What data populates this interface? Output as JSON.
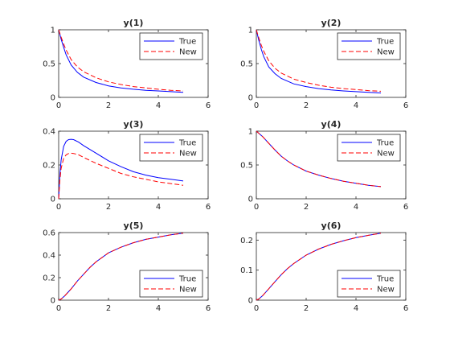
{
  "chart_data": [
    {
      "type": "line",
      "title": "y(1)",
      "xlim": [
        0,
        6
      ],
      "ylim": [
        0,
        1
      ],
      "xticks": [
        "0",
        "2",
        "4",
        "6"
      ],
      "yticks": [
        "0",
        "0.5",
        "1"
      ],
      "legend": "top-right",
      "series": [
        {
          "name": "True",
          "color": "#0000ff",
          "dash": "solid",
          "x": [
            0,
            0.1,
            0.2,
            0.3,
            0.5,
            0.75,
            1,
            1.5,
            2,
            2.5,
            3,
            3.5,
            4,
            4.5,
            5
          ],
          "y": [
            1,
            0.86,
            0.74,
            0.63,
            0.48,
            0.37,
            0.3,
            0.22,
            0.17,
            0.14,
            0.12,
            0.105,
            0.095,
            0.085,
            0.075
          ]
        },
        {
          "name": "New",
          "color": "#ff0000",
          "dash": "dashed",
          "x": [
            0,
            0.1,
            0.2,
            0.3,
            0.5,
            0.75,
            1,
            1.5,
            2,
            2.5,
            3,
            3.5,
            4,
            4.5,
            5
          ],
          "y": [
            1,
            0.89,
            0.79,
            0.7,
            0.56,
            0.45,
            0.38,
            0.29,
            0.23,
            0.19,
            0.16,
            0.14,
            0.12,
            0.105,
            0.095
          ]
        }
      ]
    },
    {
      "type": "line",
      "title": "y(2)",
      "xlim": [
        0,
        6
      ],
      "ylim": [
        0,
        1
      ],
      "xticks": [
        "0",
        "2",
        "4",
        "6"
      ],
      "yticks": [
        "0",
        "0.5",
        "1"
      ],
      "legend": "top-right",
      "series": [
        {
          "name": "True",
          "color": "#0000ff",
          "dash": "solid",
          "x": [
            0,
            0.1,
            0.2,
            0.3,
            0.5,
            0.75,
            1,
            1.5,
            2,
            2.5,
            3,
            3.5,
            4,
            4.5,
            5
          ],
          "y": [
            1,
            0.84,
            0.71,
            0.6,
            0.45,
            0.35,
            0.28,
            0.2,
            0.16,
            0.13,
            0.11,
            0.095,
            0.085,
            0.075,
            0.065
          ]
        },
        {
          "name": "New",
          "color": "#ff0000",
          "dash": "dashed",
          "x": [
            0,
            0.1,
            0.2,
            0.3,
            0.5,
            0.75,
            1,
            1.5,
            2,
            2.5,
            3,
            3.5,
            4,
            4.5,
            5
          ],
          "y": [
            1,
            0.88,
            0.77,
            0.68,
            0.54,
            0.43,
            0.36,
            0.27,
            0.22,
            0.18,
            0.15,
            0.13,
            0.115,
            0.1,
            0.09
          ]
        }
      ]
    },
    {
      "type": "line",
      "title": "y(3)",
      "xlim": [
        0,
        6
      ],
      "ylim": [
        0,
        0.4
      ],
      "xticks": [
        "0",
        "2",
        "4",
        "6"
      ],
      "yticks": [
        "0",
        "0.2",
        "0.4"
      ],
      "legend": "top-right",
      "series": [
        {
          "name": "True",
          "color": "#0000ff",
          "dash": "solid",
          "x": [
            0,
            0.05,
            0.1,
            0.2,
            0.3,
            0.4,
            0.5,
            0.6,
            0.8,
            1,
            1.5,
            2,
            2.5,
            3,
            3.5,
            4,
            4.5,
            5
          ],
          "y": [
            0,
            0.14,
            0.23,
            0.31,
            0.34,
            0.35,
            0.352,
            0.35,
            0.335,
            0.315,
            0.27,
            0.225,
            0.19,
            0.16,
            0.14,
            0.125,
            0.115,
            0.105
          ]
        },
        {
          "name": "New",
          "color": "#ff0000",
          "dash": "dashed",
          "x": [
            0,
            0.05,
            0.1,
            0.2,
            0.3,
            0.4,
            0.5,
            0.6,
            0.8,
            1,
            1.5,
            2,
            2.5,
            3,
            3.5,
            4,
            4.5,
            5
          ],
          "y": [
            0,
            0.11,
            0.18,
            0.24,
            0.26,
            0.268,
            0.27,
            0.268,
            0.26,
            0.245,
            0.21,
            0.18,
            0.15,
            0.13,
            0.115,
            0.1,
            0.09,
            0.08
          ]
        }
      ]
    },
    {
      "type": "line",
      "title": "y(4)",
      "xlim": [
        0,
        6
      ],
      "ylim": [
        0,
        1
      ],
      "xticks": [
        "0",
        "2",
        "4",
        "6"
      ],
      "yticks": [
        "0",
        "0.5",
        "1"
      ],
      "legend": "top-right",
      "series": [
        {
          "name": "True",
          "color": "#0000ff",
          "dash": "solid",
          "x": [
            0,
            0.25,
            0.5,
            0.75,
            1,
            1.25,
            1.5,
            2,
            2.5,
            3,
            3.5,
            4,
            4.5,
            5
          ],
          "y": [
            1,
            0.92,
            0.82,
            0.72,
            0.63,
            0.56,
            0.5,
            0.41,
            0.35,
            0.3,
            0.26,
            0.23,
            0.2,
            0.18
          ]
        },
        {
          "name": "New",
          "color": "#ff0000",
          "dash": "dashed",
          "x": [
            0,
            0.25,
            0.5,
            0.75,
            1,
            1.25,
            1.5,
            2,
            2.5,
            3,
            3.5,
            4,
            4.5,
            5
          ],
          "y": [
            1,
            0.92,
            0.82,
            0.72,
            0.63,
            0.56,
            0.5,
            0.41,
            0.35,
            0.3,
            0.26,
            0.23,
            0.2,
            0.18
          ]
        }
      ]
    },
    {
      "type": "line",
      "title": "y(5)",
      "xlim": [
        0,
        6
      ],
      "ylim": [
        0,
        0.6
      ],
      "xticks": [
        "0",
        "2",
        "4",
        "6"
      ],
      "yticks": [
        "0",
        "0.2",
        "0.4",
        "0.6"
      ],
      "legend": "bottom-right",
      "series": [
        {
          "name": "True",
          "color": "#0000ff",
          "dash": "solid",
          "x": [
            0,
            0.1,
            0.25,
            0.5,
            0.75,
            1,
            1.25,
            1.5,
            2,
            2.5,
            3,
            3.5,
            4,
            4.5,
            5
          ],
          "y": [
            0,
            0.01,
            0.04,
            0.1,
            0.17,
            0.23,
            0.29,
            0.34,
            0.42,
            0.47,
            0.51,
            0.54,
            0.56,
            0.58,
            0.595
          ]
        },
        {
          "name": "New",
          "color": "#ff0000",
          "dash": "dashed",
          "x": [
            0,
            0.1,
            0.25,
            0.5,
            0.75,
            1,
            1.25,
            1.5,
            2,
            2.5,
            3,
            3.5,
            4,
            4.5,
            5
          ],
          "y": [
            0,
            0.01,
            0.04,
            0.1,
            0.17,
            0.23,
            0.29,
            0.34,
            0.42,
            0.47,
            0.51,
            0.54,
            0.56,
            0.58,
            0.595
          ]
        }
      ]
    },
    {
      "type": "line",
      "title": "y(6)",
      "xlim": [
        0,
        6
      ],
      "ylim": [
        0,
        0.225
      ],
      "xticks": [
        "0",
        "2",
        "4",
        "6"
      ],
      "yticks": [
        "0",
        "0.1",
        "0.2"
      ],
      "legend": "bottom-right",
      "series": [
        {
          "name": "True",
          "color": "#0000ff",
          "dash": "solid",
          "x": [
            0,
            0.1,
            0.25,
            0.5,
            0.75,
            1,
            1.25,
            1.5,
            2,
            2.5,
            3,
            3.5,
            4,
            4.5,
            5
          ],
          "y": [
            0,
            0.004,
            0.015,
            0.038,
            0.062,
            0.085,
            0.105,
            0.122,
            0.15,
            0.17,
            0.186,
            0.198,
            0.208,
            0.216,
            0.223
          ]
        },
        {
          "name": "New",
          "color": "#ff0000",
          "dash": "dashed",
          "x": [
            0,
            0.1,
            0.25,
            0.5,
            0.75,
            1,
            1.25,
            1.5,
            2,
            2.5,
            3,
            3.5,
            4,
            4.5,
            5
          ],
          "y": [
            0,
            0.004,
            0.015,
            0.038,
            0.062,
            0.085,
            0.105,
            0.122,
            0.15,
            0.17,
            0.186,
            0.198,
            0.208,
            0.216,
            0.223
          ]
        }
      ]
    }
  ]
}
